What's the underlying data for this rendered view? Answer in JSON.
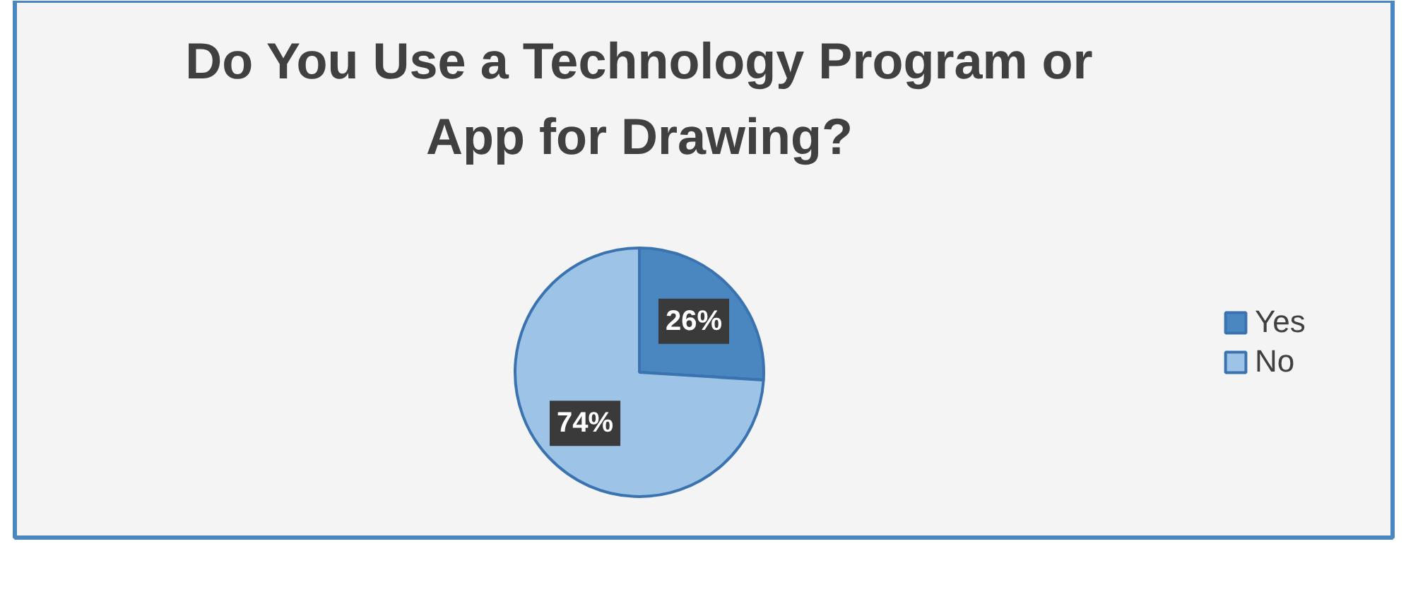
{
  "chart_data": {
    "type": "pie",
    "title": "Do You Use a Technology Program or\nApp for Drawing?",
    "categories": [
      "Yes",
      "No"
    ],
    "values": [
      26,
      74
    ],
    "colors": [
      "#4a86c0",
      "#9dc3e6"
    ],
    "value_labels": [
      "26%",
      "74%"
    ],
    "legend": "right"
  }
}
